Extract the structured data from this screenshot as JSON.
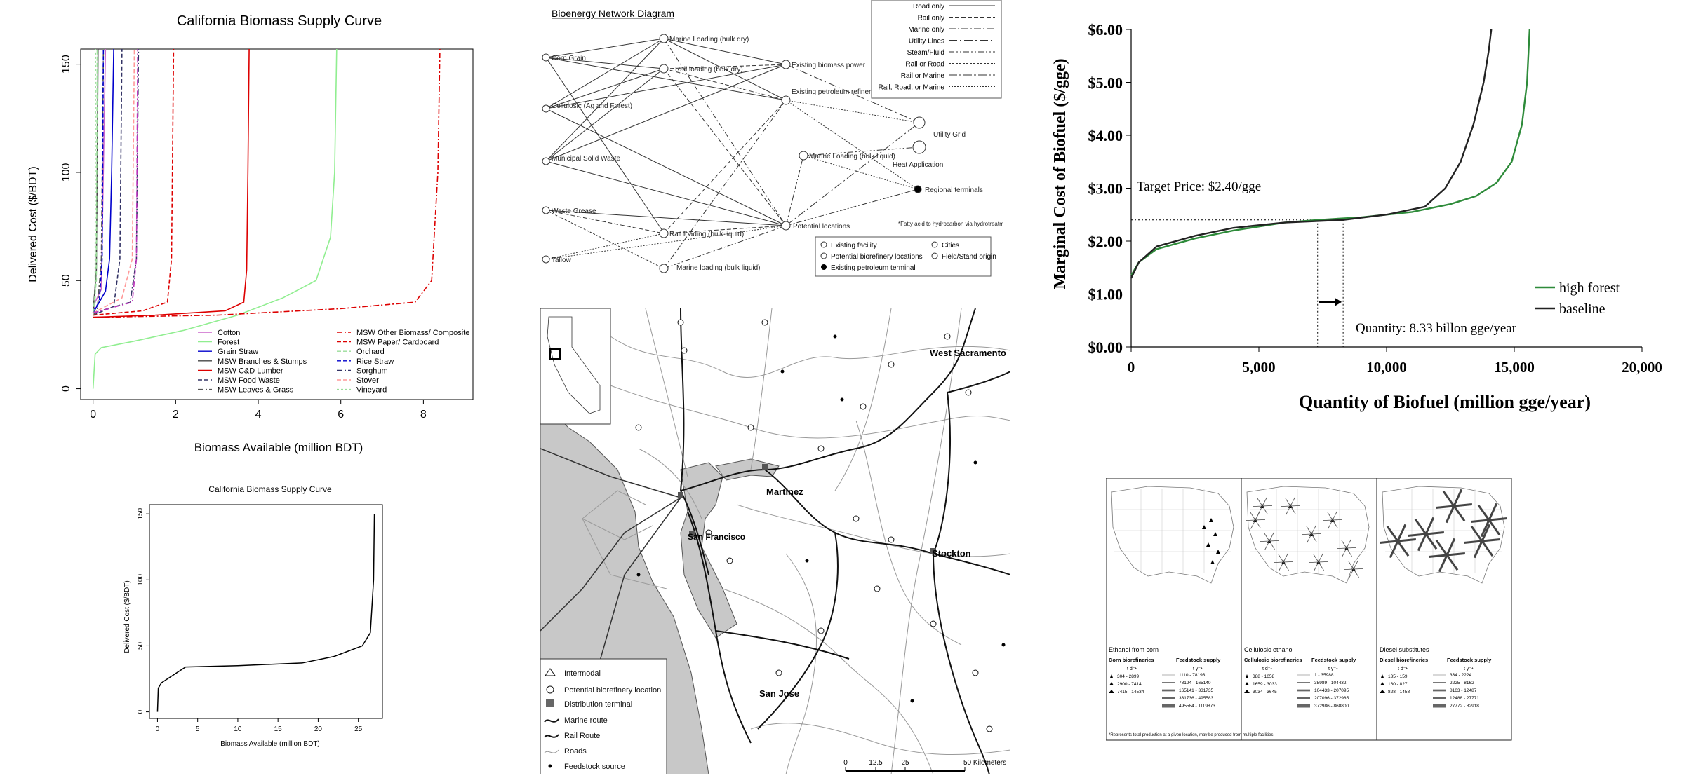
{
  "chart_data": [
    {
      "type": "line",
      "title": "California Biomass Supply Curve",
      "xlabel": "Biomass Available (million BDT)",
      "ylabel": "Delivered Cost ($/BDT)",
      "xlim": [
        -0.3,
        9.2
      ],
      "ylim": [
        -5,
        157
      ],
      "xticks": [
        0,
        2,
        4,
        6,
        8
      ],
      "yticks": [
        0,
        50,
        100,
        150
      ],
      "legend_position": "bottom-right",
      "series": [
        {
          "name": "Cotton",
          "color": "#cc66cc",
          "dash": "",
          "x": [
            0.0,
            0.05,
            0.2,
            0.3
          ],
          "y": [
            35,
            40,
            46,
            157
          ]
        },
        {
          "name": "Forest",
          "color": "#90ee90",
          "dash": "",
          "x": [
            0.0,
            0.05,
            0.2,
            1.0,
            2.2,
            3.5,
            4.6,
            5.4,
            5.75,
            5.85,
            5.9
          ],
          "y": [
            0,
            16,
            19,
            22,
            27,
            34,
            42,
            50,
            70,
            100,
            157
          ]
        },
        {
          "name": "Grain Straw",
          "color": "#0000cc",
          "dash": "",
          "x": [
            0.0,
            0.3,
            0.4,
            0.45,
            0.5
          ],
          "y": [
            35,
            45,
            60,
            100,
            157
          ]
        },
        {
          "name": "MSW Branches & Stumps",
          "color": "#444444",
          "dash": "",
          "x": [
            0.0,
            0.08,
            0.1,
            0.12
          ],
          "y": [
            35,
            55,
            100,
            157
          ]
        },
        {
          "name": "MSW C&D Lumber",
          "color": "#dd0000",
          "dash": "",
          "x": [
            0.0,
            1.5,
            3.2,
            3.65,
            3.72,
            3.75,
            3.78
          ],
          "y": [
            33,
            34,
            36,
            40,
            55,
            100,
            157
          ]
        },
        {
          "name": "MSW Food Waste",
          "color": "#333366",
          "dash": "6,3",
          "x": [
            0.0,
            0.5,
            0.65,
            0.7
          ],
          "y": [
            34,
            38,
            60,
            157
          ]
        },
        {
          "name": "MSW Leaves & Grass",
          "color": "#555555",
          "dash": "8,3,2,3",
          "x": [
            0.0,
            0.1,
            0.2,
            0.25
          ],
          "y": [
            34,
            36,
            60,
            157
          ]
        },
        {
          "name": "MSW Other Biomass/ Composite",
          "color": "#dd0000",
          "dash": "8,3,2,3",
          "x": [
            0.0,
            3.0,
            6.0,
            7.8,
            8.2,
            8.35,
            8.4
          ],
          "y": [
            33,
            34,
            37,
            40,
            50,
            100,
            157
          ]
        },
        {
          "name": "MSW Paper/ Cardboard",
          "color": "#dd0000",
          "dash": "6,3",
          "x": [
            0.0,
            1.2,
            1.8,
            1.9,
            1.95
          ],
          "y": [
            34,
            36,
            40,
            60,
            157
          ]
        },
        {
          "name": "Orchard",
          "color": "#99dd99",
          "dash": "6,3",
          "x": [
            0.0,
            0.08,
            0.1
          ],
          "y": [
            35,
            50,
            157
          ]
        },
        {
          "name": "Rice Straw",
          "color": "#0000cc",
          "dash": "6,3",
          "x": [
            0.0,
            0.15,
            0.22,
            0.25
          ],
          "y": [
            36,
            40,
            60,
            157
          ]
        },
        {
          "name": "Sorghum",
          "color": "#333366",
          "dash": "8,3,2,3",
          "x": [
            0.0,
            0.9,
            1.05,
            1.1
          ],
          "y": [
            35,
            40,
            60,
            157
          ]
        },
        {
          "name": "Stover",
          "color": "#ff9999",
          "dash": "6,3",
          "x": [
            0.0,
            0.7,
            0.95,
            1.0
          ],
          "y": [
            35,
            42,
            60,
            157
          ]
        },
        {
          "name": "Vineyard",
          "color": "#99dd99",
          "dash": "3,3",
          "x": [
            0.0,
            0.05,
            0.06
          ],
          "y": [
            34,
            40,
            157
          ]
        },
        {
          "name": "",
          "color": "#bb33bb",
          "dash": "8,3,2,3",
          "x": [
            0.0,
            0.95,
            1.05,
            1.08
          ],
          "y": [
            35,
            40,
            60,
            157
          ]
        }
      ]
    },
    {
      "type": "line",
      "title": "California Biomass Supply Curve",
      "xlabel": "Biomass Available (million BDT)",
      "ylabel": "Delivered Cost ($/BDT)",
      "xlim": [
        -1,
        28
      ],
      "ylim": [
        -5,
        157
      ],
      "xticks": [
        0,
        5,
        10,
        15,
        20,
        25
      ],
      "yticks": [
        0,
        50,
        100,
        150
      ],
      "series": [
        {
          "name": "",
          "color": "#000000",
          "x": [
            0,
            0.1,
            0.5,
            2,
            3.5,
            10,
            18,
            22,
            25.5,
            26.5,
            26.9,
            27
          ],
          "y": [
            0,
            18,
            22,
            28,
            34,
            35,
            37,
            42,
            50,
            60,
            100,
            150
          ]
        }
      ]
    },
    {
      "type": "line",
      "title": "",
      "xlabel": "Quantity of Biofuel (million gge/year)",
      "ylabel": "Marginal Cost of Biofuel ($/gge)",
      "xlim": [
        0,
        20000
      ],
      "ylim": [
        0,
        6
      ],
      "xticks": [
        0,
        5000,
        10000,
        15000,
        20000
      ],
      "yticks": [
        "$0.00",
        "$1.00",
        "$2.00",
        "$3.00",
        "$4.00",
        "$5.00",
        "$6.00"
      ],
      "ytick_values": [
        0,
        1,
        2,
        3,
        4,
        5,
        6
      ],
      "legend_position": "bottom-right",
      "annotations": {
        "target": "Target Price: $2.40/gge",
        "quantity": "Quantity: 8.33 billon gge/year"
      },
      "target_price": 2.4,
      "quantity_lines": [
        7300,
        8300
      ],
      "series": [
        {
          "name": "high forest",
          "color": "#2e8b3a",
          "x": [
            0,
            300,
            1000,
            2500,
            4000,
            6000,
            7300,
            9000,
            11000,
            12500,
            13500,
            14300,
            14900,
            15300,
            15500,
            15600
          ],
          "y": [
            1.35,
            1.6,
            1.85,
            2.05,
            2.2,
            2.35,
            2.4,
            2.45,
            2.55,
            2.7,
            2.85,
            3.1,
            3.5,
            4.2,
            5.0,
            6.0
          ]
        },
        {
          "name": "baseline",
          "color": "#222222",
          "x": [
            0,
            300,
            1000,
            2500,
            4000,
            6000,
            8300,
            10000,
            11500,
            12300,
            12900,
            13400,
            13800,
            14000,
            14100
          ],
          "y": [
            1.3,
            1.6,
            1.9,
            2.1,
            2.25,
            2.35,
            2.4,
            2.5,
            2.65,
            3.0,
            3.5,
            4.2,
            5.0,
            5.6,
            6.0
          ]
        }
      ]
    }
  ],
  "network": {
    "title": "Bioenergy Network Diagram",
    "sources": [
      "Corn Grain",
      "Cellulosic (Ag and Forest)",
      "Municipal Solid Waste",
      "Waste Grease",
      "Tallow"
    ],
    "hubs": [
      "Marine Loading (bulk dry)",
      "Rail loading (bulk dry)",
      "Rail loading (bulk liquid)",
      "Marine loading (bulk liquid)"
    ],
    "facilities": [
      "Existing biomass power",
      "Existing petroleum refineries (potential FAHC*)",
      "Marine Loading (bulk liquid)",
      "Potential locations"
    ],
    "destinations": [
      "Utility Grid",
      "Heat Application",
      "Regional terminals"
    ],
    "legend": [
      {
        "label": "Road only",
        "dash": ""
      },
      {
        "label": "Rail only",
        "dash": "6,3"
      },
      {
        "label": "Marine only",
        "dash": "10,3,2,3"
      },
      {
        "label": "Utility Lines",
        "dash": "12,4,2,4"
      },
      {
        "label": "Steam/Fluid",
        "dash": "8,3,2,3,2,3"
      },
      {
        "label": "Rail or Road",
        "dash": "3,2"
      },
      {
        "label": "Rail or Marine",
        "dash": "12,3,3,3"
      },
      {
        "label": "Rail, Road, or Marine",
        "dash": "2,2"
      }
    ],
    "footnote": "*Fatty acid to hydrocarbon via hydrotreatment",
    "key": [
      "Existing facility",
      "Potential biorefinery locations",
      "Existing petroleum terminal",
      "Cities",
      "Field/Stand origin"
    ]
  },
  "map": {
    "cities": [
      "West Sacramento",
      "Martinez",
      "San Francisco",
      "Stockton",
      "San Jose"
    ],
    "legend": [
      "Intermodal",
      "Potential biorefinery location",
      "Distribution terminal",
      "Marine route",
      "Rail Route",
      "Roads",
      "Feedstock source"
    ],
    "scale": [
      "0",
      "12.5",
      "25",
      "50 Kilometers"
    ]
  },
  "us_maps": [
    {
      "title": "Ethanol from corn",
      "left_header": "Corn biorefineries",
      "right_header": "Feedstock supply",
      "left_unit": "t d⁻¹",
      "right_unit": "t y⁻¹",
      "left": [
        "304 - 2899",
        "2900 - 7414",
        "7415 - 14534"
      ],
      "right": [
        "1110 - 78193",
        "78194 - 165140",
        "165141 - 331735",
        "331736 - 495583",
        "495584 - 1119873"
      ]
    },
    {
      "title": "Cellulosic ethanol",
      "left_header": "Cellulosic biorefineries",
      "right_header": "Feedstock supply",
      "left_unit": "t d⁻¹",
      "right_unit": "t y⁻¹",
      "left": [
        "388 - 1658",
        "1659 - 3033",
        "3034 - 3645"
      ],
      "right": [
        "1 - 35988",
        "35989 - 104432",
        "104433 - 207095",
        "207096 - 372985",
        "372986 - 868800"
      ]
    },
    {
      "title": "Diesel substitutes",
      "left_header": "Diesel biorefineries",
      "right_header": "Feedstock supply",
      "left_unit": "t d⁻¹",
      "right_unit": "t y⁻¹",
      "left": [
        "135 - 159",
        "160 - 827",
        "828 - 1458"
      ],
      "right": [
        "334 - 2224",
        "2225 - 8162",
        "8163 - 12487",
        "12488 - 27771",
        "27772 - 82918"
      ]
    }
  ],
  "us_footnote": "*Represents total production at a given location, may be produced from multiple facilities."
}
